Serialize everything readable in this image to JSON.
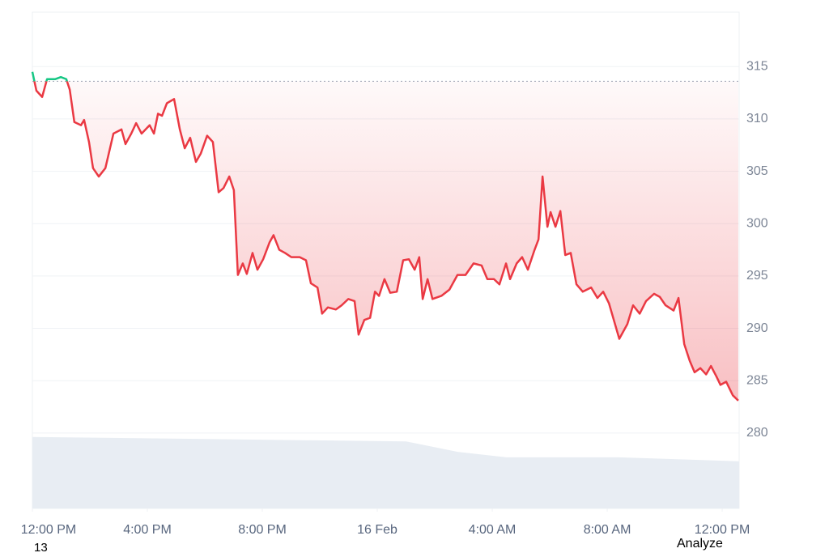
{
  "chart_data": {
    "type": "line",
    "x": [
      0,
      0.14,
      0.34,
      0.51,
      0.79,
      0.99,
      1.18,
      1.3,
      1.46,
      1.69,
      1.8,
      1.97,
      2.11,
      2.31,
      2.54,
      2.82,
      3.1,
      3.24,
      3.44,
      3.61,
      3.8,
      4.08,
      4.23,
      4.37,
      4.51,
      4.68,
      4.93,
      5.13,
      5.3,
      5.49,
      5.69,
      5.86,
      6.08,
      6.28,
      6.48,
      6.65,
      6.85,
      7.01,
      7.15,
      7.32,
      7.46,
      7.66,
      7.83,
      8.03,
      8.25,
      8.39,
      8.59,
      8.79,
      9.01,
      9.3,
      9.52,
      9.69,
      9.92,
      10.08,
      10.28,
      10.56,
      10.76,
      10.99,
      11.21,
      11.35,
      11.55,
      11.75,
      11.92,
      12.06,
      12.25,
      12.45,
      12.68,
      12.9,
      13.1,
      13.3,
      13.46,
      13.58,
      13.75,
      13.92,
      14.23,
      14.51,
      14.79,
      15.07,
      15.35,
      15.63,
      15.83,
      16.06,
      16.25,
      16.48,
      16.62,
      16.85,
      17.04,
      17.24,
      17.46,
      17.61,
      17.75,
      17.92,
      18.03,
      18.2,
      18.37,
      18.54,
      18.73,
      18.93,
      19.15,
      19.44,
      19.66,
      19.86,
      20.06,
      20.42,
      20.7,
      20.9,
      21.13,
      21.35,
      21.63,
      21.83,
      22.03,
      22.31,
      22.48,
      22.68,
      22.87,
      23.04,
      23.24,
      23.44,
      23.61,
      23.8,
      23.94,
      24.14,
      24.37,
      24.56
    ],
    "values": [
      314.5,
      312.7,
      312.1,
      313.8,
      313.8,
      314.0,
      313.8,
      312.8,
      309.7,
      309.4,
      309.9,
      307.8,
      305.3,
      304.5,
      305.3,
      308.6,
      309.0,
      307.6,
      308.6,
      309.6,
      308.6,
      309.4,
      308.6,
      310.5,
      310.3,
      311.5,
      311.9,
      309.0,
      307.2,
      308.2,
      305.9,
      306.7,
      308.4,
      307.8,
      303.0,
      303.4,
      304.5,
      303.2,
      295.1,
      296.2,
      295.2,
      297.2,
      295.6,
      296.6,
      298.2,
      298.9,
      297.5,
      297.2,
      296.8,
      296.8,
      296.5,
      294.3,
      293.9,
      291.4,
      292.0,
      291.8,
      292.2,
      292.8,
      292.6,
      289.4,
      290.8,
      291.0,
      293.5,
      293.1,
      294.7,
      293.4,
      293.5,
      296.5,
      296.6,
      295.6,
      296.8,
      292.8,
      294.7,
      292.8,
      293.1,
      293.7,
      295.1,
      295.1,
      296.2,
      296.0,
      294.7,
      294.7,
      294.2,
      296.2,
      294.7,
      296.2,
      296.8,
      295.6,
      297.4,
      298.5,
      304.5,
      299.7,
      301.1,
      299.7,
      301.2,
      297.0,
      297.2,
      294.2,
      293.5,
      293.9,
      292.9,
      293.5,
      292.4,
      289.0,
      290.4,
      292.2,
      291.4,
      292.6,
      293.3,
      293.0,
      292.2,
      291.7,
      292.9,
      288.5,
      286.9,
      285.8,
      286.2,
      285.6,
      286.4,
      285.4,
      284.6,
      284.9,
      283.6,
      283.1
    ],
    "baseline": 313.6,
    "up_color": "#16c784",
    "down_color": "#ea3943",
    "xlim": [
      0,
      24.59
    ],
    "ylim": [
      272.8,
      320.2
    ],
    "xticks": [
      {
        "value": 0,
        "label": "12:00 PM"
      },
      {
        "value": 4,
        "label": "4:00 PM"
      },
      {
        "value": 8,
        "label": "8:00 PM"
      },
      {
        "value": 12,
        "label": "16 Feb"
      },
      {
        "value": 16,
        "label": "4:00 AM"
      },
      {
        "value": 20,
        "label": "8:00 AM"
      },
      {
        "value": 24,
        "label": "12:00 PM"
      }
    ],
    "yticks": [
      280,
      285,
      290,
      295,
      300,
      305,
      310,
      315
    ],
    "grid": true,
    "volume": {
      "color": "#e8edf3",
      "x": [
        0,
        13,
        14.8,
        16.5,
        20.4,
        24.59
      ],
      "values": [
        14.4,
        13.5,
        11.4,
        10.3,
        10.3,
        9.5
      ],
      "lim": [
        0,
        100
      ]
    }
  },
  "footer": {
    "left": "13",
    "right": "Analyze"
  }
}
